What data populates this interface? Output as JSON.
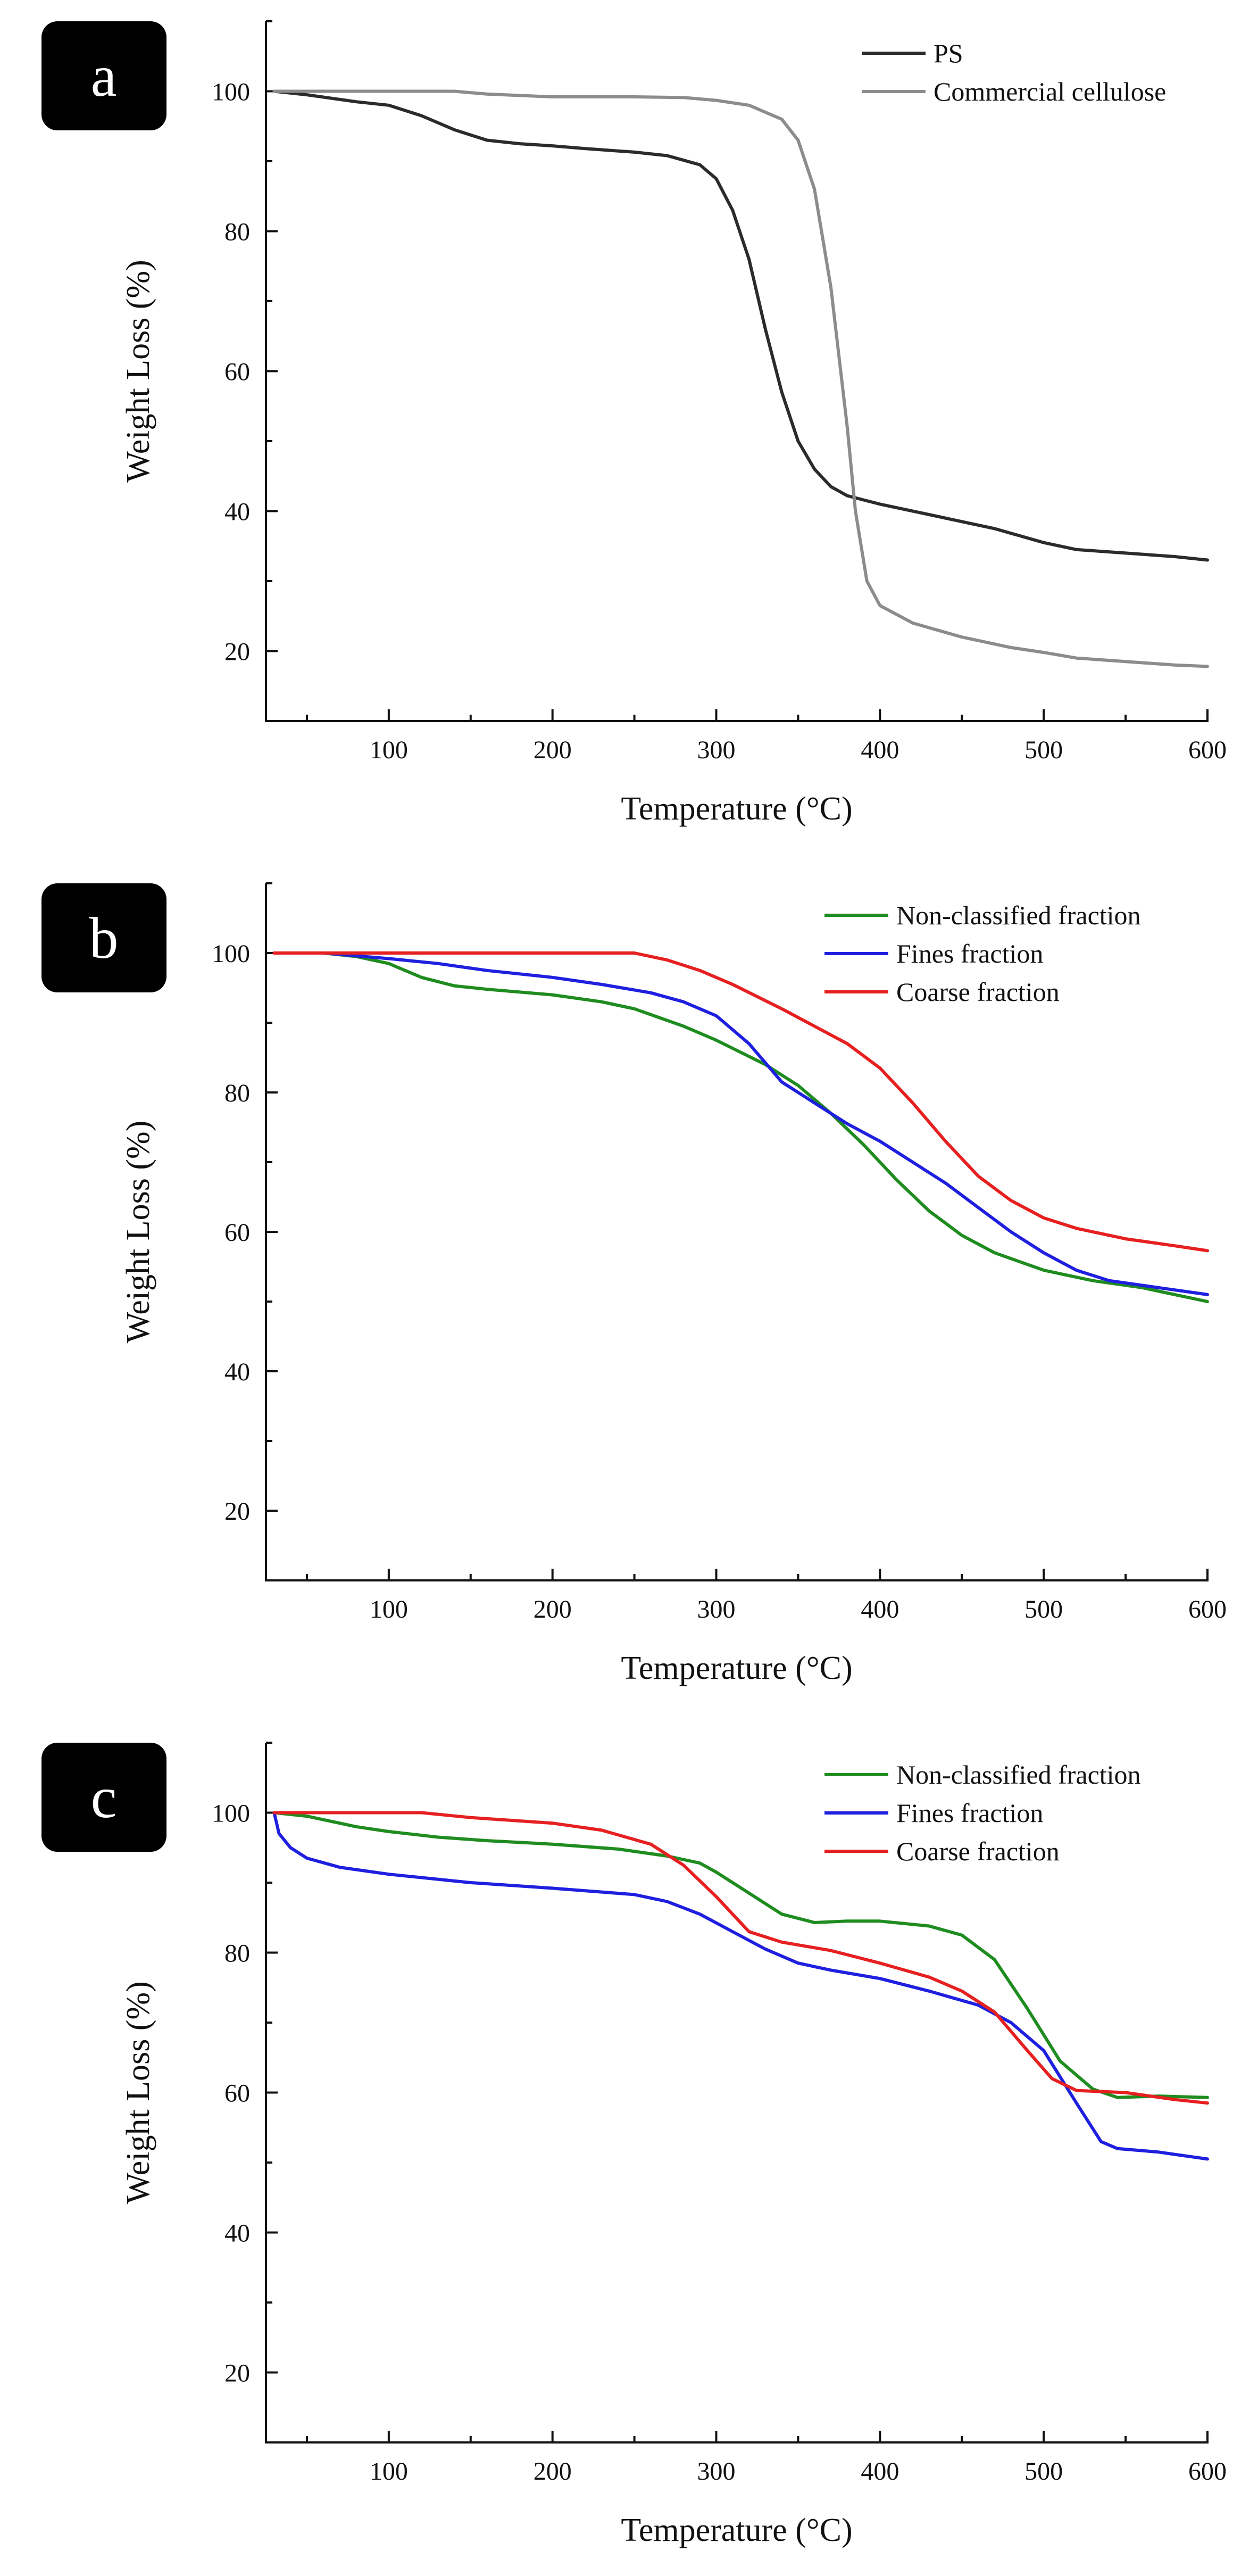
{
  "chart_data": [
    {
      "panel": "a",
      "type": "line",
      "xlabel": "Temperature (°C)",
      "ylabel": "Weight Loss (%)",
      "xlim": [
        25,
        600
      ],
      "ylim": [
        10,
        110
      ],
      "xticks": [
        100,
        200,
        300,
        400,
        500,
        600
      ],
      "yticks": [
        20,
        40,
        60,
        80,
        100
      ],
      "legend_position": "top-right",
      "series": [
        {
          "name": "PS",
          "color": "#2b2b2b",
          "points": [
            [
              30,
              100
            ],
            [
              50,
              99.5
            ],
            [
              80,
              98.5
            ],
            [
              100,
              98
            ],
            [
              120,
              96.5
            ],
            [
              140,
              94.5
            ],
            [
              160,
              93
            ],
            [
              180,
              92.5
            ],
            [
              200,
              92.2
            ],
            [
              220,
              91.8
            ],
            [
              250,
              91.3
            ],
            [
              270,
              90.8
            ],
            [
              290,
              89.5
            ],
            [
              300,
              87.5
            ],
            [
              310,
              83
            ],
            [
              320,
              76
            ],
            [
              330,
              66
            ],
            [
              340,
              57
            ],
            [
              350,
              50
            ],
            [
              360,
              46
            ],
            [
              370,
              43.5
            ],
            [
              380,
              42.2
            ],
            [
              400,
              41
            ],
            [
              430,
              39.5
            ],
            [
              470,
              37.5
            ],
            [
              500,
              35.5
            ],
            [
              520,
              34.5
            ],
            [
              550,
              34
            ],
            [
              580,
              33.5
            ],
            [
              600,
              33
            ]
          ]
        },
        {
          "name": "Commercial cellulose",
          "color": "#8c8c8c",
          "points": [
            [
              30,
              100
            ],
            [
              100,
              100
            ],
            [
              140,
              100
            ],
            [
              160,
              99.6
            ],
            [
              200,
              99.2
            ],
            [
              250,
              99.2
            ],
            [
              280,
              99.1
            ],
            [
              300,
              98.7
            ],
            [
              320,
              98
            ],
            [
              340,
              96
            ],
            [
              350,
              93
            ],
            [
              360,
              86
            ],
            [
              370,
              72
            ],
            [
              380,
              52
            ],
            [
              385,
              40
            ],
            [
              392,
              30
            ],
            [
              400,
              26.5
            ],
            [
              420,
              24
            ],
            [
              450,
              22
            ],
            [
              480,
              20.5
            ],
            [
              500,
              19.8
            ],
            [
              520,
              19
            ],
            [
              550,
              18.5
            ],
            [
              580,
              18
            ],
            [
              600,
              17.8
            ]
          ]
        }
      ]
    },
    {
      "panel": "b",
      "type": "line",
      "xlabel": "Temperature (°C)",
      "ylabel": "Weight Loss (%)",
      "xlim": [
        25,
        600
      ],
      "ylim": [
        10,
        110
      ],
      "xticks": [
        100,
        200,
        300,
        400,
        500,
        600
      ],
      "yticks": [
        20,
        40,
        60,
        80,
        100
      ],
      "legend_position": "top-right",
      "series": [
        {
          "name": "Non-classified fraction",
          "color": "#1f8c1f",
          "points": [
            [
              30,
              100
            ],
            [
              60,
              100
            ],
            [
              80,
              99.5
            ],
            [
              100,
              98.5
            ],
            [
              120,
              96.5
            ],
            [
              140,
              95.3
            ],
            [
              160,
              94.8
            ],
            [
              200,
              94
            ],
            [
              230,
              93
            ],
            [
              250,
              92
            ],
            [
              280,
              89.5
            ],
            [
              300,
              87.5
            ],
            [
              330,
              84
            ],
            [
              350,
              81
            ],
            [
              370,
              77
            ],
            [
              390,
              72.5
            ],
            [
              410,
              67.5
            ],
            [
              430,
              63
            ],
            [
              450,
              59.5
            ],
            [
              470,
              57
            ],
            [
              500,
              54.5
            ],
            [
              530,
              53
            ],
            [
              560,
              52
            ],
            [
              600,
              50
            ]
          ]
        },
        {
          "name": "Fines fraction",
          "color": "#1f1fe0",
          "points": [
            [
              30,
              100
            ],
            [
              60,
              100
            ],
            [
              100,
              99.2
            ],
            [
              130,
              98.5
            ],
            [
              160,
              97.5
            ],
            [
              200,
              96.5
            ],
            [
              230,
              95.5
            ],
            [
              260,
              94.3
            ],
            [
              280,
              93
            ],
            [
              300,
              91
            ],
            [
              320,
              87
            ],
            [
              340,
              81.5
            ],
            [
              360,
              78.5
            ],
            [
              380,
              75.5
            ],
            [
              400,
              73
            ],
            [
              420,
              70
            ],
            [
              440,
              67
            ],
            [
              460,
              63.5
            ],
            [
              480,
              60
            ],
            [
              500,
              57
            ],
            [
              520,
              54.5
            ],
            [
              540,
              53
            ],
            [
              570,
              52
            ],
            [
              600,
              51
            ]
          ]
        },
        {
          "name": "Coarse fraction",
          "color": "#e62020",
          "points": [
            [
              30,
              100
            ],
            [
              100,
              100
            ],
            [
              200,
              100
            ],
            [
              250,
              100
            ],
            [
              270,
              99
            ],
            [
              290,
              97.5
            ],
            [
              310,
              95.5
            ],
            [
              340,
              92
            ],
            [
              360,
              89.5
            ],
            [
              380,
              87
            ],
            [
              400,
              83.5
            ],
            [
              420,
              78.5
            ],
            [
              440,
              73
            ],
            [
              460,
              68
            ],
            [
              480,
              64.5
            ],
            [
              500,
              62
            ],
            [
              520,
              60.5
            ],
            [
              550,
              59
            ],
            [
              580,
              58
            ],
            [
              600,
              57.3
            ]
          ]
        }
      ]
    },
    {
      "panel": "c",
      "type": "line",
      "xlabel": "Temperature (°C)",
      "ylabel": "Weight Loss (%)",
      "xlim": [
        25,
        600
      ],
      "ylim": [
        10,
        110
      ],
      "xticks": [
        100,
        200,
        300,
        400,
        500,
        600
      ],
      "yticks": [
        20,
        40,
        60,
        80,
        100
      ],
      "legend_position": "top-right",
      "series": [
        {
          "name": "Non-classified fraction",
          "color": "#1f8c1f",
          "points": [
            [
              30,
              100
            ],
            [
              50,
              99.5
            ],
            [
              80,
              98
            ],
            [
              100,
              97.3
            ],
            [
              130,
              96.5
            ],
            [
              160,
              96
            ],
            [
              200,
              95.5
            ],
            [
              240,
              94.8
            ],
            [
              270,
              93.8
            ],
            [
              290,
              92.8
            ],
            [
              300,
              91.5
            ],
            [
              320,
              88.5
            ],
            [
              340,
              85.5
            ],
            [
              360,
              84.3
            ],
            [
              380,
              84.5
            ],
            [
              400,
              84.5
            ],
            [
              430,
              83.8
            ],
            [
              450,
              82.5
            ],
            [
              470,
              79
            ],
            [
              490,
              72
            ],
            [
              510,
              64.5
            ],
            [
              530,
              60.5
            ],
            [
              545,
              59.3
            ],
            [
              570,
              59.5
            ],
            [
              600,
              59.3
            ]
          ]
        },
        {
          "name": "Fines fraction",
          "color": "#1f1fe0",
          "points": [
            [
              30,
              100
            ],
            [
              33,
              97
            ],
            [
              40,
              95
            ],
            [
              50,
              93.5
            ],
            [
              70,
              92.2
            ],
            [
              100,
              91.2
            ],
            [
              150,
              90
            ],
            [
              200,
              89.2
            ],
            [
              250,
              88.3
            ],
            [
              270,
              87.3
            ],
            [
              290,
              85.5
            ],
            [
              310,
              83
            ],
            [
              330,
              80.5
            ],
            [
              350,
              78.5
            ],
            [
              370,
              77.5
            ],
            [
              400,
              76.3
            ],
            [
              430,
              74.5
            ],
            [
              460,
              72.5
            ],
            [
              480,
              70
            ],
            [
              500,
              66
            ],
            [
              520,
              58.5
            ],
            [
              535,
              53
            ],
            [
              545,
              52
            ],
            [
              570,
              51.5
            ],
            [
              600,
              50.5
            ]
          ]
        },
        {
          "name": "Coarse fraction",
          "color": "#e62020",
          "points": [
            [
              30,
              100
            ],
            [
              80,
              100
            ],
            [
              120,
              100
            ],
            [
              150,
              99.3
            ],
            [
              200,
              98.5
            ],
            [
              230,
              97.5
            ],
            [
              260,
              95.5
            ],
            [
              280,
              92.5
            ],
            [
              300,
              88
            ],
            [
              320,
              83
            ],
            [
              340,
              81.5
            ],
            [
              370,
              80.3
            ],
            [
              400,
              78.5
            ],
            [
              430,
              76.5
            ],
            [
              450,
              74.5
            ],
            [
              470,
              71.5
            ],
            [
              490,
              66
            ],
            [
              505,
              62
            ],
            [
              520,
              60.3
            ],
            [
              550,
              60
            ],
            [
              580,
              59
            ],
            [
              600,
              58.5
            ]
          ]
        }
      ]
    }
  ]
}
